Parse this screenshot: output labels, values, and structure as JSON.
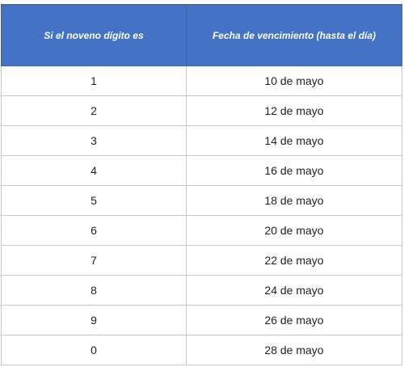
{
  "table": {
    "headers": {
      "digit": "Si el noveno dígito es",
      "due_date": "Fecha de vencimiento (hasta el día)"
    },
    "rows": [
      {
        "digit": "1",
        "due_date": "10 de mayo"
      },
      {
        "digit": "2",
        "due_date": "12 de mayo"
      },
      {
        "digit": "3",
        "due_date": "14 de mayo"
      },
      {
        "digit": "4",
        "due_date": "16 de mayo"
      },
      {
        "digit": "5",
        "due_date": "18 de mayo"
      },
      {
        "digit": "6",
        "due_date": "20 de mayo"
      },
      {
        "digit": "7",
        "due_date": "22 de mayo"
      },
      {
        "digit": "8",
        "due_date": "24 de mayo"
      },
      {
        "digit": "9",
        "due_date": "26 de mayo"
      },
      {
        "digit": "0",
        "due_date": "28 de mayo"
      }
    ]
  },
  "colors": {
    "header_background": "#4472c4",
    "header_text": "#ffffff",
    "grid_line": "#c9c9c9"
  }
}
